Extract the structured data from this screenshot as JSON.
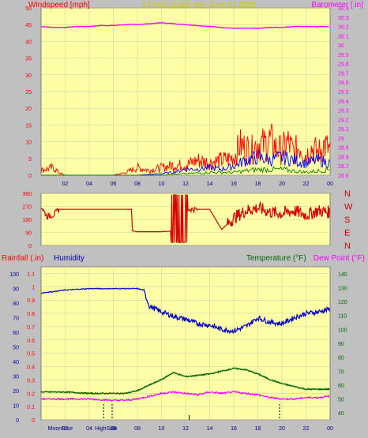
{
  "header": {
    "left_title": "Windspeed [mph]",
    "center_title": "24 hour graph day   June 01 2021",
    "right_title": "Barometer [.in]"
  },
  "middle": {
    "compass_labels": [
      "N",
      "W",
      "S",
      "E",
      "N"
    ]
  },
  "bottom_header": {
    "rainfall": "Rainfall (.in)",
    "humidity": "Humidity",
    "temperature": "Temperature (°F)",
    "dewpoint": "Dew Point (°F)"
  },
  "bottom_events": {
    "moonrise": "MoonRise",
    "highside": "HighSide"
  },
  "colors": {
    "plot_bg": "#ffffa8",
    "frame": "#c0c0c0",
    "wind": "#ff0000",
    "gust": "#0000ff",
    "avg": "#008000",
    "barometer": "#ff00ff",
    "direction": "#dd0000",
    "humidity": "#0000cc",
    "temperature": "#006600",
    "dewpoint": "#ff00ff",
    "left_axis_text": "#ff0000",
    "right_axis_text_top": "#ff00ff",
    "humidity_axis_text": "#0000aa",
    "temp_axis_text": "#006600"
  },
  "chart_data": [
    {
      "id": "wind_baro",
      "type": "line",
      "x_ticks": [
        "02",
        "04",
        "06",
        "08",
        "10",
        "12",
        "14",
        "16",
        "18",
        "20",
        "22",
        "00"
      ],
      "x_range_hours": [
        0,
        24
      ],
      "left_axis": {
        "label": "Windspeed [mph]",
        "ticks": [
          0,
          5,
          10,
          15,
          20,
          25,
          30,
          35,
          40,
          45,
          50
        ],
        "range": [
          0,
          50
        ]
      },
      "right_axis": {
        "label": "Barometer [.in]",
        "ticks": [
          "28.6",
          "28.7",
          "28.8",
          "28.9",
          "29",
          "29.1",
          "29.2",
          "29.3",
          "29.4",
          "29.5",
          "29.6",
          "29.7",
          "29.8",
          "29.9",
          "30",
          "30.1",
          "30.2",
          "30.3",
          "30.4"
        ],
        "range": [
          28.6,
          30.4
        ]
      },
      "series": [
        {
          "name": "barometer",
          "x": [
            0,
            1,
            2,
            3,
            4,
            5,
            6,
            7,
            8,
            9,
            10,
            11,
            12,
            13,
            14,
            15,
            16,
            17,
            18,
            19,
            20,
            21,
            22,
            23,
            24
          ],
          "values": [
            30.2,
            30.19,
            30.19,
            30.2,
            30.2,
            30.21,
            30.21,
            30.22,
            30.22,
            30.23,
            30.24,
            30.23,
            30.22,
            30.21,
            30.2,
            30.19,
            30.18,
            30.18,
            30.18,
            30.19,
            30.19,
            30.2,
            30.2,
            30.2,
            30.2
          ]
        },
        {
          "name": "wind_gust",
          "x": [
            0,
            1,
            1.5,
            2,
            3,
            4,
            5,
            6,
            7,
            8,
            9,
            10,
            11,
            12,
            13,
            14,
            15,
            16,
            16.5,
            17,
            17.5,
            18,
            18.5,
            19,
            19.5,
            20,
            20.5,
            21,
            21.5,
            22,
            22.5,
            23,
            23.5,
            24
          ],
          "values": [
            2,
            3,
            1,
            0,
            0,
            0,
            0,
            0,
            1,
            3,
            2,
            3,
            4,
            4,
            6,
            5,
            6,
            7,
            12,
            11,
            10,
            13,
            12,
            14,
            11,
            10,
            13,
            9,
            12,
            8,
            11,
            9,
            12,
            10
          ]
        },
        {
          "name": "wind_avg",
          "x": [
            0,
            2,
            4,
            6,
            8,
            10,
            11,
            12,
            13,
            14,
            15,
            16,
            17,
            18,
            19,
            20,
            21,
            22,
            23,
            24
          ],
          "values": [
            0,
            0,
            0,
            0,
            0,
            0.5,
            1,
            2,
            2,
            2.5,
            2,
            3,
            5,
            6,
            5,
            6,
            5,
            4,
            5,
            4
          ]
        },
        {
          "name": "wind_low",
          "x": [
            0,
            4,
            8,
            10,
            12,
            14,
            16,
            18,
            20,
            22,
            24
          ],
          "values": [
            0,
            0,
            0,
            0,
            0.5,
            1,
            1,
            2,
            2,
            1,
            2
          ]
        }
      ]
    },
    {
      "id": "wind_direction",
      "type": "line",
      "left_axis": {
        "ticks": [
          0,
          90,
          180,
          270,
          360
        ],
        "range": [
          0,
          360
        ]
      },
      "right_axis": {
        "labels": [
          "N",
          "W",
          "S",
          "E",
          "N"
        ]
      },
      "series": [
        {
          "name": "direction",
          "x": [
            0,
            0.5,
            1,
            1.5,
            2,
            3,
            4,
            5,
            6,
            7,
            7.5,
            7.6,
            8,
            9,
            10,
            11,
            12,
            13,
            14,
            15,
            16,
            17,
            18,
            19,
            20,
            21,
            22,
            23,
            24
          ],
          "values": [
            270,
            200,
            210,
            250,
            250,
            250,
            250,
            250,
            250,
            250,
            250,
            100,
            95,
            95,
            95,
            100,
            280,
            250,
            250,
            110,
            190,
            240,
            260,
            230,
            220,
            240,
            210,
            240,
            230
          ]
        }
      ]
    },
    {
      "id": "temp_humidity",
      "type": "line",
      "x_ticks": [
        "02",
        "04",
        "06",
        "08",
        "10",
        "12",
        "14",
        "16",
        "18",
        "20",
        "22",
        "00"
      ],
      "left_axis": {
        "label": "Rainfall (.in)",
        "ticks": [
          "0",
          "0.1",
          "0.2",
          "0.3",
          "0.4",
          "0.5",
          "0.6",
          "0.7",
          "0.8",
          "0.9",
          "1",
          "1.1"
        ],
        "range": [
          0,
          1.1
        ]
      },
      "far_left_axis": {
        "label": "Humidity",
        "ticks": [
          0,
          10,
          20,
          30,
          40,
          50,
          60,
          70,
          80,
          90,
          100
        ],
        "range": [
          0,
          100
        ]
      },
      "right_axis": {
        "label": "Temperature (°F)",
        "ticks": [
          40,
          50,
          60,
          70,
          80,
          90,
          100,
          110,
          120,
          130,
          140
        ],
        "range": [
          35,
          145
        ]
      },
      "series": [
        {
          "name": "humidity",
          "x": [
            0,
            1,
            2,
            4,
            6,
            8,
            8.5,
            9,
            10,
            11,
            12,
            13,
            14,
            15,
            16,
            17,
            18,
            19,
            20,
            21,
            22,
            23,
            24
          ],
          "values": [
            87,
            88,
            89,
            90,
            90,
            90,
            89,
            78,
            74,
            71,
            69,
            66,
            65,
            62,
            61,
            64,
            70,
            67,
            66,
            70,
            73,
            74,
            76
          ]
        },
        {
          "name": "temperature",
          "x": [
            0,
            2,
            4,
            6,
            7,
            8,
            9,
            10,
            11,
            12,
            13,
            14,
            15,
            16,
            17,
            18,
            19,
            20,
            21,
            22,
            23,
            24
          ],
          "values": [
            55,
            55,
            54,
            54,
            54,
            56,
            60,
            64,
            69,
            66,
            67,
            68,
            70,
            72,
            71,
            68,
            64,
            61,
            59,
            57,
            57,
            57
          ]
        },
        {
          "name": "dewpoint",
          "x": [
            0,
            2,
            4,
            6,
            7,
            8,
            9,
            10,
            11,
            12,
            13,
            14,
            15,
            16,
            17,
            18,
            19,
            20,
            21,
            22,
            23,
            24
          ],
          "values": [
            50,
            50,
            50,
            49,
            49,
            50,
            52,
            54,
            55,
            54,
            53,
            55,
            54,
            55,
            54,
            53,
            51,
            50,
            50,
            51,
            51,
            52
          ]
        }
      ]
    }
  ]
}
